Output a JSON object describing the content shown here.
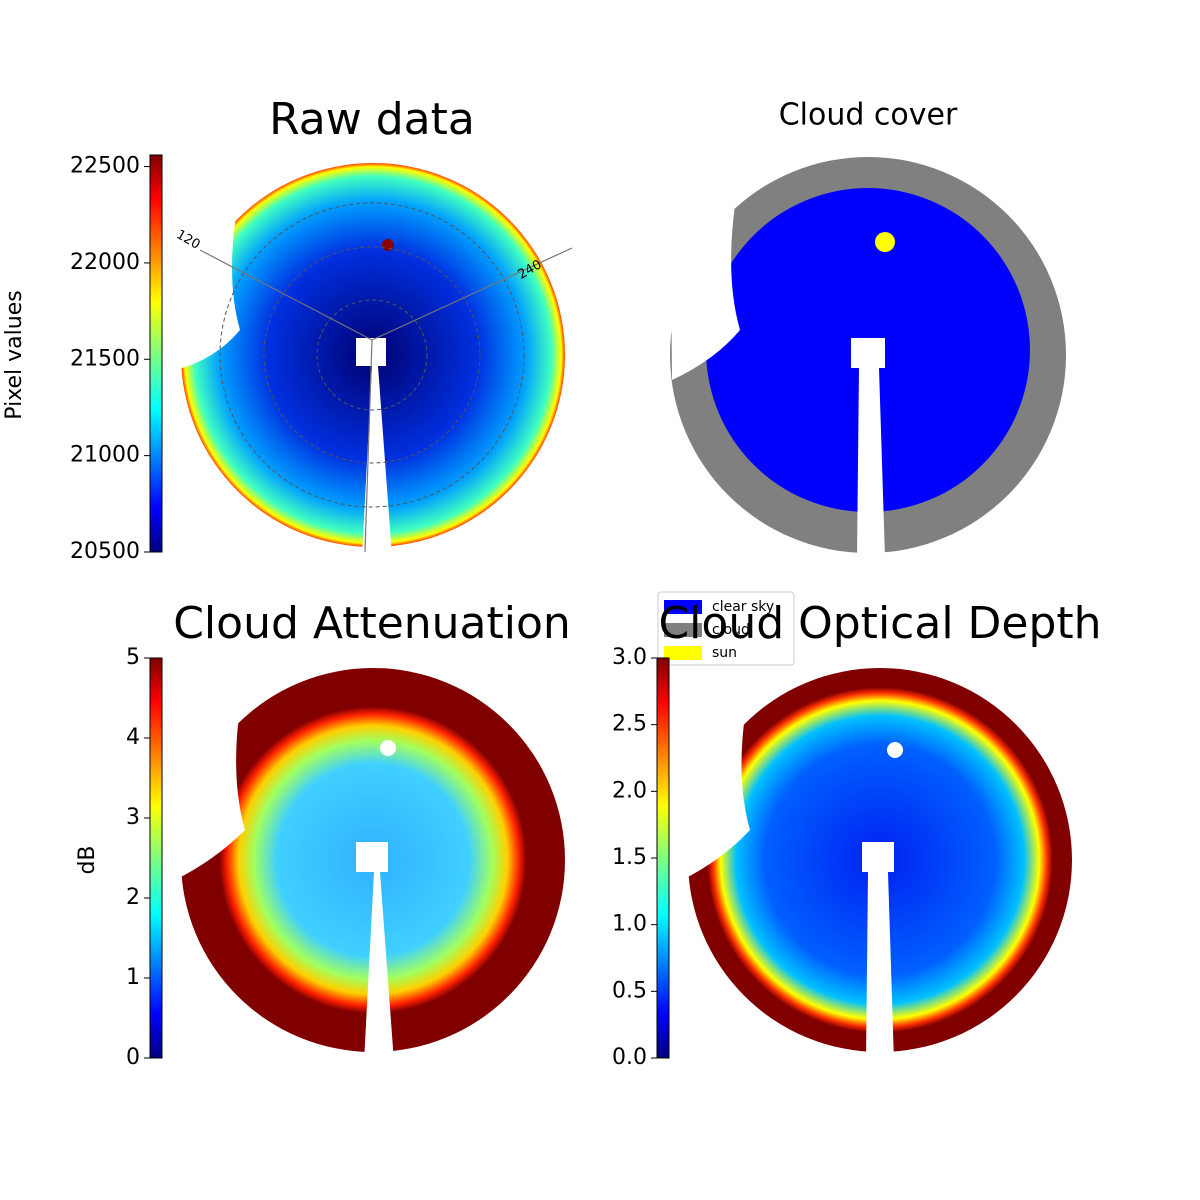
{
  "chart_data": [
    {
      "type": "image",
      "title": "Raw data",
      "ylabel": "Pixel values",
      "ylim": [
        20500,
        22560
      ],
      "yticks": [
        20500,
        21000,
        21500,
        22000,
        22500
      ],
      "annotations": [
        "120",
        "240"
      ]
    },
    {
      "type": "image",
      "title": "Cloud cover",
      "legend": [
        {
          "name": "clear sky",
          "color": "#0000ff"
        },
        {
          "name": "cloud",
          "color": "#808080"
        },
        {
          "name": "sun",
          "color": "#ffff00"
        }
      ]
    },
    {
      "type": "image",
      "title": "Cloud Attenuation",
      "ylabel": "dB",
      "ylim": [
        0,
        5
      ],
      "yticks": [
        0,
        1,
        2,
        3,
        4,
        5
      ]
    },
    {
      "type": "image",
      "title": "Cloud Optical Depth",
      "ylim": [
        0,
        3
      ],
      "yticks": [
        {
          "value": 0,
          "label": "0.0"
        },
        {
          "value": 0.5,
          "label": "0.5"
        },
        {
          "value": 1,
          "label": "1.0"
        },
        {
          "value": 1.5,
          "label": "1.5"
        },
        {
          "value": 2,
          "label": "2.0"
        },
        {
          "value": 2.5,
          "label": "2.5"
        },
        {
          "value": 3,
          "label": "3.0"
        }
      ]
    }
  ]
}
